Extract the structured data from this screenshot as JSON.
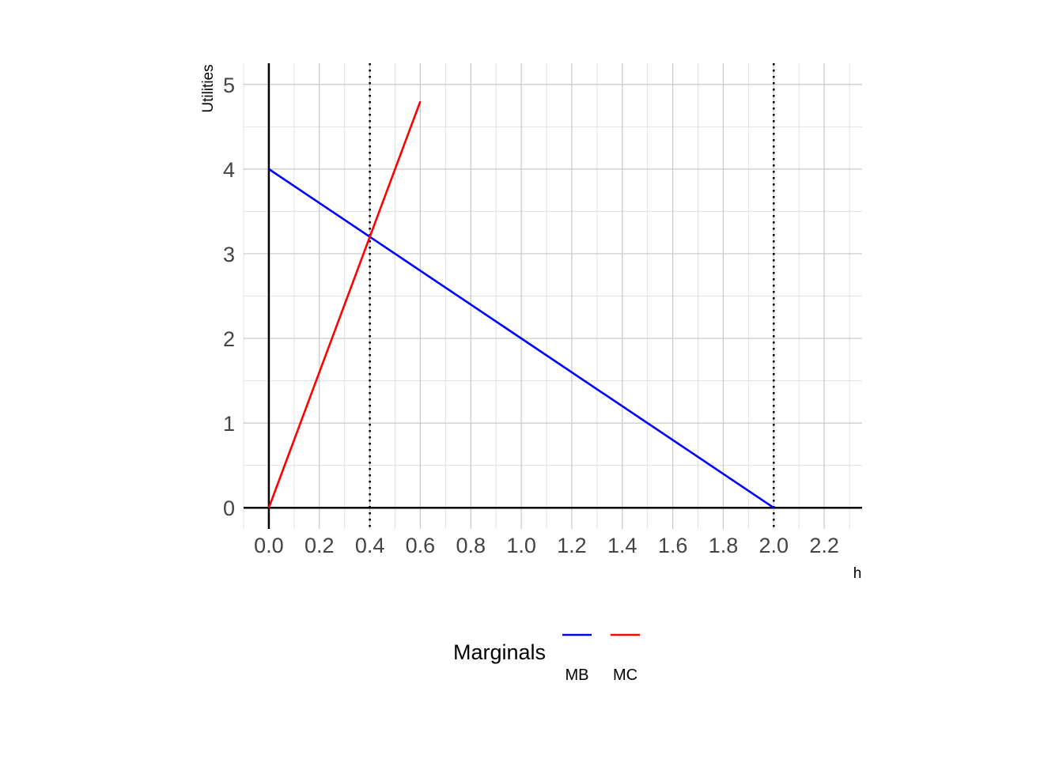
{
  "chart_data": {
    "type": "line",
    "title": "",
    "xlabel": "h",
    "ylabel": "Utilities",
    "xlim": [
      -0.1,
      2.35
    ],
    "ylim": [
      -0.25,
      5.25
    ],
    "x_ticks": [
      "0.0",
      "0.2",
      "0.4",
      "0.6",
      "0.8",
      "1.0",
      "1.2",
      "1.4",
      "1.6",
      "1.8",
      "2.0",
      "2.2"
    ],
    "y_ticks": [
      "0",
      "1",
      "2",
      "3",
      "4",
      "5"
    ],
    "grid": true,
    "series": [
      {
        "name": "MB",
        "color": "#0000ff",
        "x": [
          0,
          2
        ],
        "y": [
          4,
          0
        ]
      },
      {
        "name": "MC",
        "color": "#ff0000",
        "x": [
          0,
          0.6
        ],
        "y": [
          0,
          4.8
        ]
      }
    ],
    "vlines": [
      0.4,
      2.0
    ],
    "legend": {
      "title": "Marginals",
      "position": "bottom"
    }
  }
}
